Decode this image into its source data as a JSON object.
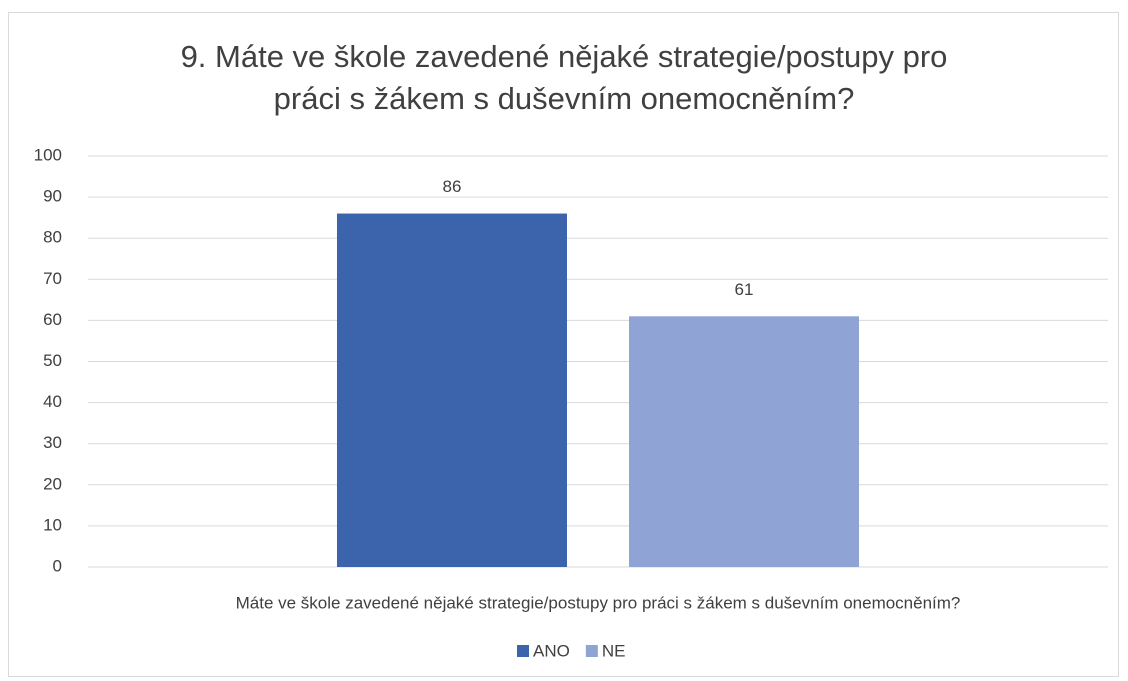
{
  "chart_data": {
    "type": "bar",
    "title": "9. Máte ve škole zavedené nějaké strategie/postupy pro práci s žákem s duševním onemocněním?",
    "categories": [
      "Máte ve škole zavedené nějaké strategie/postupy pro práci s žákem s duševním onemocněním?"
    ],
    "series": [
      {
        "name": "ANO",
        "color": "#3c64ac",
        "values": [
          86
        ]
      },
      {
        "name": "NE",
        "color": "#8fa4d4",
        "values": [
          61
        ]
      }
    ],
    "ylim": [
      0,
      100
    ],
    "yticks": [
      0,
      10,
      20,
      30,
      40,
      50,
      60,
      70,
      80,
      90,
      100
    ],
    "grid": true,
    "legend": "bottom"
  }
}
